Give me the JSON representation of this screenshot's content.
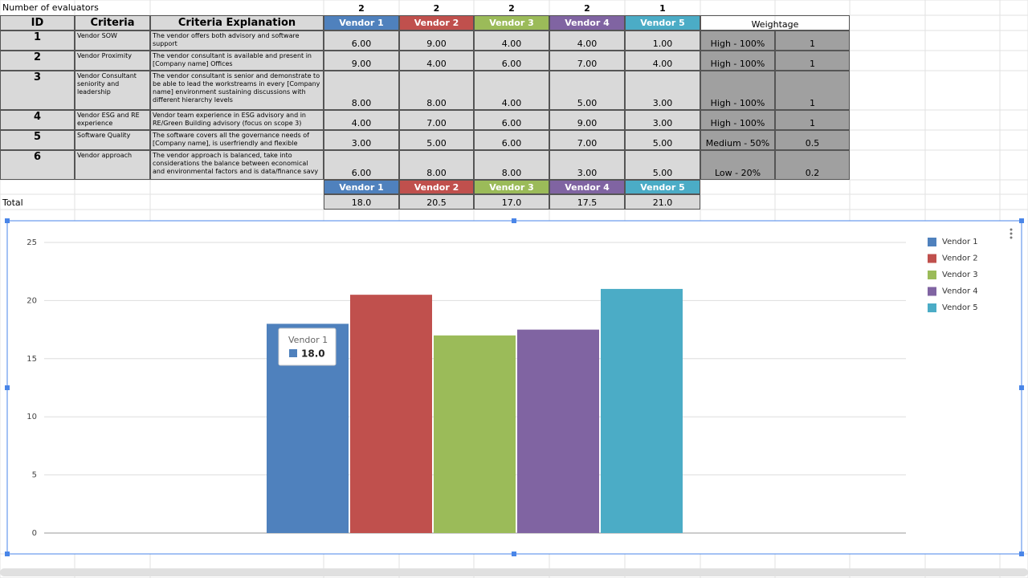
{
  "sheet": {
    "evaluators_label": "Number of evaluators",
    "evaluators": [
      2,
      2,
      2,
      2,
      1
    ],
    "headers": [
      "ID",
      "Criteria",
      "Criteria Explanation"
    ],
    "weightage_header": "Weightage",
    "rows": [
      {
        "id": 1,
        "criteria": "Vendor SOW",
        "explanation": "The vendor offers both advisory and software support",
        "scores": [
          "6.00",
          "9.00",
          "4.00",
          "4.00",
          "1.00"
        ],
        "weight_label": "High - 100%",
        "weight": 1
      },
      {
        "id": 2,
        "criteria": "Vendor Proximity",
        "explanation": "The vendor consultant is available and present in [Company name] Offices",
        "scores": [
          "9.00",
          "4.00",
          "6.00",
          "7.00",
          "4.00"
        ],
        "weight_label": "High - 100%",
        "weight": 1
      },
      {
        "id": 3,
        "criteria": "Vendor Consultant seniority and leadership",
        "explanation": "The vendor consultant is senior and demonstrate to be able to lead the workstreams in every [Company name] environment sustaining discussions with different hierarchy levels",
        "scores": [
          "8.00",
          "8.00",
          "4.00",
          "5.00",
          "3.00"
        ],
        "weight_label": "High - 100%",
        "weight": 1
      },
      {
        "id": 4,
        "criteria": "Vendor ESG and RE experience",
        "explanation": "Vendor team experience in ESG advisory and in RE/Green Building advisory (focus on scope 3)",
        "scores": [
          "4.00",
          "7.00",
          "6.00",
          "9.00",
          "3.00"
        ],
        "weight_label": "High - 100%",
        "weight": 1
      },
      {
        "id": 5,
        "criteria": "Software Quality",
        "explanation": "The software covers all the governance needs of [Company name], is userfriendly and  flexible",
        "scores": [
          "3.00",
          "5.00",
          "6.00",
          "7.00",
          "5.00"
        ],
        "weight_label": "Medium - 50%",
        "weight": 0.5
      },
      {
        "id": 6,
        "criteria": "Vendor approach",
        "explanation": "The vendor approach is balanced, take into considerations the balance between economical and environmental factors and is data/finance savy",
        "scores": [
          "6.00",
          "8.00",
          "8.00",
          "3.00",
          "5.00"
        ],
        "weight_label": "Low - 20%",
        "weight": 0.2
      }
    ],
    "total_label": "Total",
    "totals": [
      "18.0",
      "20.5",
      "17.0",
      "17.5",
      "21.0"
    ]
  },
  "chart_data": {
    "type": "bar",
    "series": [
      {
        "name": "Vendor 1",
        "color": "#4f81bd",
        "values": [
          18.0
        ]
      },
      {
        "name": "Vendor 2",
        "color": "#c0504d",
        "values": [
          20.5
        ]
      },
      {
        "name": "Vendor 3",
        "color": "#9bbb59",
        "values": [
          17.0
        ]
      },
      {
        "name": "Vendor 4",
        "color": "#8064a2",
        "values": [
          17.5
        ]
      },
      {
        "name": "Vendor 5",
        "color": "#4bacc6",
        "values": [
          21.0
        ]
      }
    ],
    "ylim": [
      0,
      25
    ],
    "yticks": [
      0,
      5,
      10,
      15,
      20,
      25
    ],
    "grid": true,
    "legend": "right",
    "tooltip": {
      "title": "Vendor 1",
      "label": "18.0"
    }
  }
}
